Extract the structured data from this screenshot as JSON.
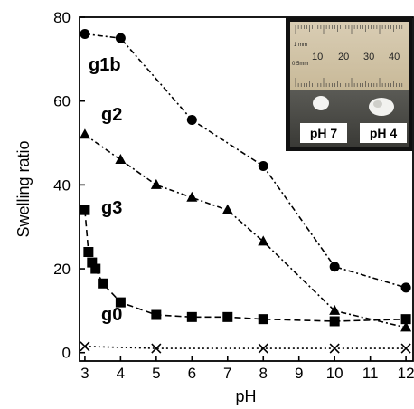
{
  "chart_data": {
    "type": "line",
    "xlabel": "pH",
    "ylabel": "Swelling ratio",
    "xlim": [
      2.85,
      12.2
    ],
    "ylim": [
      -2,
      80
    ],
    "xticks": [
      3,
      4,
      5,
      6,
      7,
      8,
      9,
      10,
      11,
      12
    ],
    "yticks": [
      0,
      20,
      40,
      60,
      80
    ],
    "grid": false,
    "series": [
      {
        "name": "g1b",
        "marker": "circle",
        "dash": "6,3,2,3",
        "x": [
          3,
          4,
          6,
          8,
          10,
          12
        ],
        "y": [
          76,
          75,
          55.5,
          44.5,
          20.5,
          15.5
        ]
      },
      {
        "name": "g2",
        "marker": "triangle",
        "dash": "6,3,2,3",
        "x": [
          3,
          4,
          5,
          6,
          7,
          8,
          10,
          12
        ],
        "y": [
          52,
          46,
          40,
          37,
          34,
          26.5,
          10,
          6
        ]
      },
      {
        "name": "g3",
        "marker": "square",
        "dash": "7,4",
        "x": [
          3,
          3.1,
          3.2,
          3.3,
          3.5,
          4,
          5,
          6,
          7,
          8,
          10,
          12
        ],
        "y": [
          34,
          24,
          21.5,
          20,
          16.5,
          12,
          9,
          8.5,
          8.5,
          8,
          7.5,
          8
        ]
      },
      {
        "name": "g0",
        "marker": "x",
        "dash": "2,3",
        "x": [
          3,
          5,
          8,
          10,
          12
        ],
        "y": [
          1.5,
          1,
          1,
          1,
          1
        ]
      }
    ],
    "annotations": {
      "inset_labels": [
        "pH 7",
        "pH 4"
      ],
      "ruler_numbers": [
        "10",
        "20",
        "30",
        "40"
      ],
      "ruler_units": [
        "1 mm",
        "0.5mm"
      ]
    }
  }
}
